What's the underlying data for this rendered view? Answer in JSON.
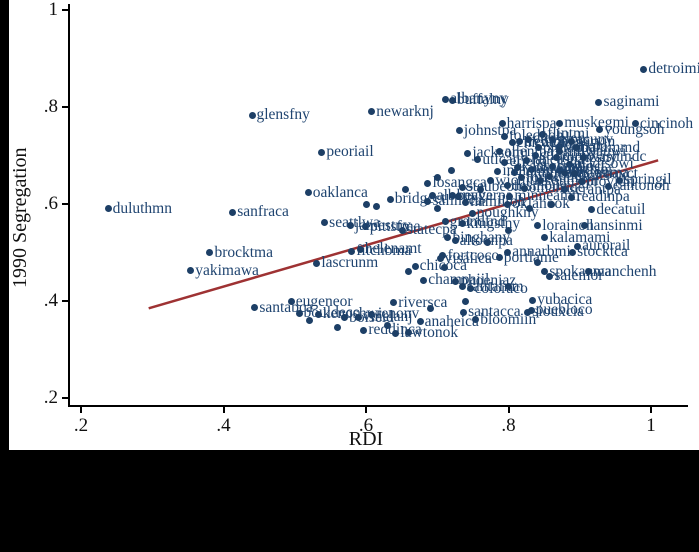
{
  "chart_data": {
    "type": "scatter",
    "title": "",
    "xlabel": "RDI",
    "ylabel": "1990 Segregation",
    "xlim": [
      0.2,
      1.07
    ],
    "ylim": [
      0.2,
      1.0
    ],
    "grid": false,
    "legend": false,
    "marker_color": "#1d3f66",
    "label_color": "#1f4470",
    "axis_color": "#000000",
    "x_ticks": [
      {
        "value": 0.2,
        "label": ".2"
      },
      {
        "value": 0.4,
        "label": ".4"
      },
      {
        "value": 0.6,
        "label": ".6"
      },
      {
        "value": 0.8,
        "label": ".8"
      },
      {
        "value": 1.0,
        "label": "1"
      }
    ],
    "y_ticks": [
      {
        "value": 0.2,
        "label": ".2"
      },
      {
        "value": 0.4,
        "label": ".4"
      },
      {
        "value": 0.6,
        "label": ".6"
      },
      {
        "value": 0.8,
        "label": ".8"
      },
      {
        "value": 1.0,
        "label": "1"
      }
    ],
    "trend_line": {
      "color": "#9e3233",
      "width": 2.5,
      "x1": 0.295,
      "y1": 0.385,
      "x2": 1.01,
      "y2": 0.69
    },
    "points": [
      {
        "label": "duluthmn",
        "x": 0.238,
        "y": 0.59
      },
      {
        "label": "glensfny",
        "x": 0.44,
        "y": 0.783
      },
      {
        "label": "sanfraca",
        "x": 0.413,
        "y": 0.583
      },
      {
        "label": "peoriail",
        "x": 0.538,
        "y": 0.707
      },
      {
        "label": "oaklanca",
        "x": 0.519,
        "y": 0.623
      },
      {
        "label": "newarknj",
        "x": 0.608,
        "y": 0.79
      },
      {
        "label": "albanyny",
        "x": 0.712,
        "y": 0.816
      },
      {
        "label": "buffalny",
        "x": 0.721,
        "y": 0.814
      },
      {
        "label": "detroimi",
        "x": 0.99,
        "y": 0.878
      },
      {
        "label": "saginami",
        "x": 0.927,
        "y": 0.81
      },
      {
        "label": "muskegmi",
        "x": 0.872,
        "y": 0.767
      },
      {
        "label": "cincinoh",
        "x": 0.978,
        "y": 0.765
      },
      {
        "label": "harrispa",
        "x": 0.791,
        "y": 0.765
      },
      {
        "label": "johnstpa",
        "x": 0.731,
        "y": 0.751
      },
      {
        "label": "youngsoh",
        "x": 0.928,
        "y": 0.753
      },
      {
        "label": "toledooh",
        "x": 0.795,
        "y": 0.74
      },
      {
        "label": "syracuny",
        "x": 0.862,
        "y": 0.732
      },
      {
        "label": "yorkpa",
        "x": 0.872,
        "y": 0.718
      },
      {
        "label": "trentonj",
        "x": 0.816,
        "y": 0.728
      },
      {
        "label": "jacksomi",
        "x": 0.743,
        "y": 0.705
      },
      {
        "label": "uticany",
        "x": 0.757,
        "y": 0.691
      },
      {
        "label": "portlaor",
        "x": 0.872,
        "y": 0.67
      },
      {
        "label": "springil",
        "x": 0.956,
        "y": 0.649
      },
      {
        "label": "cantonoh",
        "x": 0.94,
        "y": 0.637
      },
      {
        "label": "scrantpa",
        "x": 0.879,
        "y": 0.629
      },
      {
        "label": "losangca",
        "x": 0.687,
        "y": 0.643
      },
      {
        "label": "steubeoh",
        "x": 0.735,
        "y": 0.635
      },
      {
        "label": "albanyga",
        "x": 0.693,
        "y": 0.617
      },
      {
        "label": "beaverpa",
        "x": 0.721,
        "y": 0.617
      },
      {
        "label": "bridgect",
        "x": 0.634,
        "y": 0.61
      },
      {
        "label": "salinaca",
        "x": 0.687,
        "y": 0.606
      },
      {
        "label": "hamiltoh",
        "x": 0.74,
        "y": 0.604
      },
      {
        "label": "oklahook",
        "x": 0.799,
        "y": 0.6
      },
      {
        "label": "minneamn",
        "x": 0.802,
        "y": 0.616
      },
      {
        "label": "readinpa",
        "x": 0.889,
        "y": 0.614
      },
      {
        "label": "decatuil",
        "x": 0.917,
        "y": 0.588
      },
      {
        "label": "poughkny",
        "x": 0.749,
        "y": 0.581
      },
      {
        "label": "grandfnd",
        "x": 0.711,
        "y": 0.563
      },
      {
        "label": "kingstny",
        "x": 0.735,
        "y": 0.559
      },
      {
        "label": "statecpa",
        "x": 0.651,
        "y": 0.546
      },
      {
        "label": "pittsfma",
        "x": 0.599,
        "y": 0.553
      },
      {
        "label": "jamestny",
        "x": 0.578,
        "y": 0.555
      },
      {
        "label": "seattlwa",
        "x": 0.542,
        "y": 0.561
      },
      {
        "label": "lorainoh",
        "x": 0.841,
        "y": 0.555
      },
      {
        "label": "lansinmi",
        "x": 0.907,
        "y": 0.555
      },
      {
        "label": "kalamami",
        "x": 0.851,
        "y": 0.53
      },
      {
        "label": "aurorail",
        "x": 0.897,
        "y": 0.513
      },
      {
        "label": "binghany",
        "x": 0.715,
        "y": 0.53
      },
      {
        "label": "altoonpa",
        "x": 0.725,
        "y": 0.524
      },
      {
        "label": "annarbmi",
        "x": 0.799,
        "y": 0.501
      },
      {
        "label": "stocktca",
        "x": 0.89,
        "y": 0.501
      },
      {
        "label": "fortcoco",
        "x": 0.708,
        "y": 0.493
      },
      {
        "label": "portlame",
        "x": 0.787,
        "y": 0.489
      },
      {
        "label": "visalica",
        "x": 0.704,
        "y": 0.487
      },
      {
        "label": "chicoca",
        "x": 0.669,
        "y": 0.472
      },
      {
        "label": "brocktma",
        "x": 0.381,
        "y": 0.499
      },
      {
        "label": "yakimawa",
        "x": 0.354,
        "y": 0.462
      },
      {
        "label": "lascrunm",
        "x": 0.531,
        "y": 0.478
      },
      {
        "label": "fitchbma",
        "x": 0.58,
        "y": 0.503
      },
      {
        "label": "helenamt",
        "x": 0.592,
        "y": 0.507
      },
      {
        "label": "champaiil",
        "x": 0.681,
        "y": 0.443
      },
      {
        "label": "phoeniaz",
        "x": 0.726,
        "y": 0.441
      },
      {
        "label": "santafnm",
        "x": 0.735,
        "y": 0.429
      },
      {
        "label": "coloraco",
        "x": 0.746,
        "y": 0.425
      },
      {
        "label": "spokanwa",
        "x": 0.851,
        "y": 0.46
      },
      {
        "label": "salemor",
        "x": 0.858,
        "y": 0.451
      },
      {
        "label": "manchenh",
        "x": 0.912,
        "y": 0.46
      },
      {
        "label": "yubacica",
        "x": 0.834,
        "y": 0.402
      },
      {
        "label": "puebloco",
        "x": 0.832,
        "y": 0.381
      },
      {
        "label": "siouxcia",
        "x": 0.827,
        "y": 0.377
      },
      {
        "label": "bloomiin",
        "x": 0.754,
        "y": 0.361
      },
      {
        "label": "santacca",
        "x": 0.737,
        "y": 0.377
      },
      {
        "label": "riversca",
        "x": 0.639,
        "y": 0.396
      },
      {
        "label": "eugeneor",
        "x": 0.495,
        "y": 0.398
      },
      {
        "label": "santabca",
        "x": 0.444,
        "y": 0.386
      },
      {
        "label": "bouldeco",
        "x": 0.506,
        "y": 0.375
      },
      {
        "label": "kenoshwi",
        "x": 0.533,
        "y": 0.373
      },
      {
        "label": "renonv",
        "x": 0.608,
        "y": 0.373
      },
      {
        "label": "boiseid",
        "x": 0.57,
        "y": 0.365
      },
      {
        "label": "vinelanj",
        "x": 0.589,
        "y": 0.367
      },
      {
        "label": "reddinca",
        "x": 0.597,
        "y": 0.34
      },
      {
        "label": "anaheica",
        "x": 0.676,
        "y": 0.357
      },
      {
        "label": "lawtonok",
        "x": 0.642,
        "y": 0.334
      },
      {
        "label": "flintmi",
        "x": 0.848,
        "y": 0.744
      },
      {
        "label": "cleveloh",
        "x": 0.828,
        "y": 0.733
      },
      {
        "label": "chicagil",
        "x": 0.805,
        "y": 0.726
      },
      {
        "label": "philadpa",
        "x": 0.842,
        "y": 0.716
      },
      {
        "label": "milwauwi",
        "x": 0.872,
        "y": 0.708
      },
      {
        "label": "stlouimo",
        "x": 0.838,
        "y": 0.699
      },
      {
        "label": "garyin",
        "x": 0.888,
        "y": 0.728
      },
      {
        "label": "rochesny",
        "x": 0.868,
        "y": 0.695
      },
      {
        "label": "allentpa",
        "x": 0.788,
        "y": 0.708
      },
      {
        "label": "lancaspa",
        "x": 0.825,
        "y": 0.69
      },
      {
        "label": "eriepa",
        "x": 0.795,
        "y": 0.686
      },
      {
        "label": "akronoh",
        "x": 0.832,
        "y": 0.672
      },
      {
        "label": "columboh",
        "x": 0.808,
        "y": 0.664
      },
      {
        "label": "indianin",
        "x": 0.785,
        "y": 0.668
      },
      {
        "label": "fortwain",
        "x": 0.818,
        "y": 0.654
      },
      {
        "label": "southbin",
        "x": 0.845,
        "y": 0.648
      },
      {
        "label": "wichitks",
        "x": 0.775,
        "y": 0.648
      },
      {
        "label": "desmoiia",
        "x": 0.798,
        "y": 0.638
      },
      {
        "label": "omahane",
        "x": 0.822,
        "y": 0.632
      },
      {
        "label": "topekaks",
        "x": 0.858,
        "y": 0.657
      },
      {
        "label": "madisowi",
        "x": 0.885,
        "y": 0.682
      },
      {
        "label": "baltimmd",
        "x": 0.895,
        "y": 0.716
      },
      {
        "label": "washindc",
        "x": 0.905,
        "y": 0.696
      },
      {
        "label": "bostonma",
        "x": 0.878,
        "y": 0.664
      },
      {
        "label": "hartfoct",
        "x": 0.862,
        "y": 0.677
      },
      {
        "label": "newhavct",
        "x": 0.892,
        "y": 0.662
      },
      {
        "label": "providri",
        "x": 0.902,
        "y": 0.646
      },
      {
        "label": "kansasmo",
        "x": 0.812,
        "y": 0.676
      },
      {
        "label": "",
        "x": 0.6,
        "y": 0.6
      },
      {
        "label": "",
        "x": 0.615,
        "y": 0.594
      },
      {
        "label": "",
        "x": 0.655,
        "y": 0.63
      },
      {
        "label": "",
        "x": 0.7,
        "y": 0.655
      },
      {
        "label": "",
        "x": 0.72,
        "y": 0.67
      },
      {
        "label": "",
        "x": 0.76,
        "y": 0.63
      },
      {
        "label": "",
        "x": 0.7,
        "y": 0.59
      },
      {
        "label": "",
        "x": 0.73,
        "y": 0.615
      },
      {
        "label": "",
        "x": 0.66,
        "y": 0.46
      },
      {
        "label": "",
        "x": 0.71,
        "y": 0.47
      },
      {
        "label": "",
        "x": 0.77,
        "y": 0.52
      },
      {
        "label": "",
        "x": 0.8,
        "y": 0.545
      },
      {
        "label": "",
        "x": 0.83,
        "y": 0.59
      },
      {
        "label": "",
        "x": 0.86,
        "y": 0.6
      },
      {
        "label": "",
        "x": 0.63,
        "y": 0.35
      },
      {
        "label": "",
        "x": 0.66,
        "y": 0.335
      },
      {
        "label": "",
        "x": 0.69,
        "y": 0.385
      },
      {
        "label": "",
        "x": 0.74,
        "y": 0.4
      },
      {
        "label": "",
        "x": 0.52,
        "y": 0.36
      },
      {
        "label": "",
        "x": 0.56,
        "y": 0.345
      },
      {
        "label": "",
        "x": 0.8,
        "y": 0.43
      },
      {
        "label": "",
        "x": 0.84,
        "y": 0.48
      }
    ]
  },
  "frame": {
    "background": "#000000",
    "panel": "#ffffff"
  }
}
